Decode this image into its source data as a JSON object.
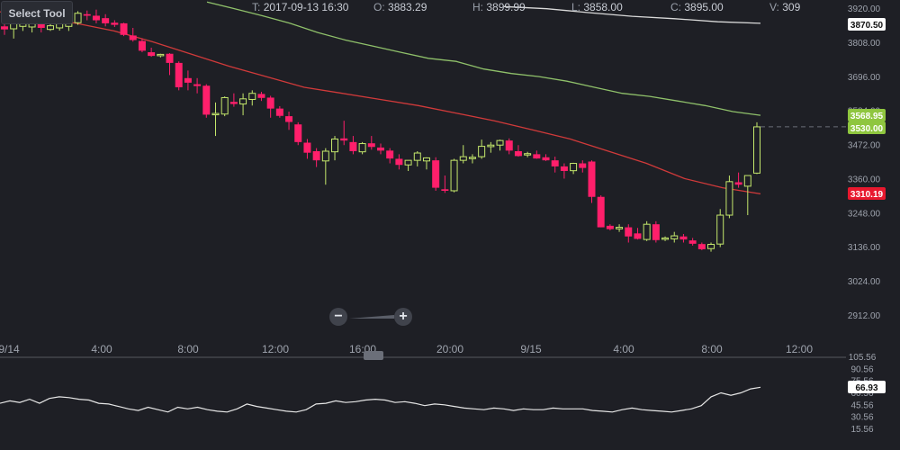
{
  "toolbar": {
    "select_tool_label": "Select Tool"
  },
  "info": {
    "t_label": "T:",
    "t_value": "2017-09-13 16:30",
    "o_label": "O:",
    "o_value": "3883.29",
    "h_label": "H:",
    "h_value": "3899.99",
    "l_label": "L:",
    "l_value": "3858.00",
    "c_label": "C:",
    "c_value": "3895.00",
    "v_label": "V:",
    "v_value": "309"
  },
  "zoom": {
    "minus_label": "−",
    "plus_label": "+"
  },
  "colors": {
    "background": "#1e1f25",
    "up_candle": "#c5e86c",
    "down_candle": "#ff1f6b",
    "ma_fast": "#8fc06a",
    "ma_slow": "#d03a3a",
    "ma_top": "#d9d9d9",
    "oscillator": "#e6e6e6"
  },
  "chart_data": {
    "type": "candlestick",
    "price_axis_ticks": [
      "3920.00",
      "3808.00",
      "3696.00",
      "3584.00",
      "3472.00",
      "3360.00",
      "3248.00",
      "3136.00",
      "3024.00",
      "2912.00"
    ],
    "price_axis_range": [
      2912,
      3920
    ],
    "price_badges": [
      {
        "label": "3870.50",
        "style": "white"
      },
      {
        "label": "3568.95",
        "style": "green"
      },
      {
        "label": "3530.00",
        "style": "green"
      },
      {
        "label": "3310.19",
        "style": "red"
      }
    ],
    "time_axis_ticks": [
      "9/14",
      "4:00",
      "8:00",
      "12:00",
      "16:00",
      "20:00",
      "9/15",
      "4:00",
      "8:00",
      "12:00"
    ],
    "oscillator_axis_ticks": [
      "105.56",
      "90.56",
      "75.56",
      "60.56",
      "45.56",
      "30.56",
      "15.56"
    ],
    "oscillator_badge": "66.93",
    "candles": [
      {
        "o": 3860,
        "h": 3880,
        "l": 3832,
        "c": 3850
      },
      {
        "o": 3852,
        "h": 3875,
        "l": 3820,
        "c": 3872
      },
      {
        "o": 3860,
        "h": 3888,
        "l": 3845,
        "c": 3872
      },
      {
        "o": 3858,
        "h": 3880,
        "l": 3840,
        "c": 3874
      },
      {
        "o": 3880,
        "h": 3885,
        "l": 3840,
        "c": 3855
      },
      {
        "o": 3850,
        "h": 3890,
        "l": 3845,
        "c": 3862
      },
      {
        "o": 3855,
        "h": 3890,
        "l": 3846,
        "c": 3875
      },
      {
        "o": 3860,
        "h": 3896,
        "l": 3845,
        "c": 3872
      },
      {
        "o": 3872,
        "h": 3910,
        "l": 3865,
        "c": 3903
      },
      {
        "o": 3900,
        "h": 3912,
        "l": 3880,
        "c": 3895
      },
      {
        "o": 3895,
        "h": 3915,
        "l": 3870,
        "c": 3880
      },
      {
        "o": 3887,
        "h": 3900,
        "l": 3860,
        "c": 3870
      },
      {
        "o": 3872,
        "h": 3880,
        "l": 3858,
        "c": 3865
      },
      {
        "o": 3870,
        "h": 3872,
        "l": 3828,
        "c": 3832
      },
      {
        "o": 3830,
        "h": 3855,
        "l": 3810,
        "c": 3815
      },
      {
        "o": 3812,
        "h": 3820,
        "l": 3775,
        "c": 3780
      },
      {
        "o": 3775,
        "h": 3790,
        "l": 3760,
        "c": 3763
      },
      {
        "o": 3765,
        "h": 3770,
        "l": 3758,
        "c": 3768
      },
      {
        "o": 3770,
        "h": 3772,
        "l": 3700,
        "c": 3740
      },
      {
        "o": 3740,
        "h": 3745,
        "l": 3650,
        "c": 3660
      },
      {
        "o": 3690,
        "h": 3715,
        "l": 3650,
        "c": 3675
      },
      {
        "o": 3670,
        "h": 3690,
        "l": 3640,
        "c": 3664
      },
      {
        "o": 3665,
        "h": 3670,
        "l": 3560,
        "c": 3570
      },
      {
        "o": 3572,
        "h": 3610,
        "l": 3500,
        "c": 3574
      },
      {
        "o": 3572,
        "h": 3630,
        "l": 3565,
        "c": 3626
      },
      {
        "o": 3612,
        "h": 3640,
        "l": 3596,
        "c": 3605
      },
      {
        "o": 3605,
        "h": 3640,
        "l": 3568,
        "c": 3622
      },
      {
        "o": 3620,
        "h": 3650,
        "l": 3600,
        "c": 3640
      },
      {
        "o": 3638,
        "h": 3645,
        "l": 3615,
        "c": 3625
      },
      {
        "o": 3626,
        "h": 3632,
        "l": 3560,
        "c": 3590
      },
      {
        "o": 3590,
        "h": 3598,
        "l": 3560,
        "c": 3566
      },
      {
        "o": 3565,
        "h": 3580,
        "l": 3520,
        "c": 3546
      },
      {
        "o": 3538,
        "h": 3545,
        "l": 3470,
        "c": 3480
      },
      {
        "o": 3478,
        "h": 3490,
        "l": 3425,
        "c": 3445
      },
      {
        "o": 3450,
        "h": 3460,
        "l": 3398,
        "c": 3420
      },
      {
        "o": 3418,
        "h": 3460,
        "l": 3340,
        "c": 3450
      },
      {
        "o": 3448,
        "h": 3500,
        "l": 3420,
        "c": 3490
      },
      {
        "o": 3492,
        "h": 3550,
        "l": 3470,
        "c": 3485
      },
      {
        "o": 3480,
        "h": 3500,
        "l": 3440,
        "c": 3450
      },
      {
        "o": 3448,
        "h": 3480,
        "l": 3440,
        "c": 3475
      },
      {
        "o": 3476,
        "h": 3500,
        "l": 3455,
        "c": 3464
      },
      {
        "o": 3462,
        "h": 3475,
        "l": 3440,
        "c": 3452
      },
      {
        "o": 3452,
        "h": 3460,
        "l": 3410,
        "c": 3426
      },
      {
        "o": 3425,
        "h": 3440,
        "l": 3390,
        "c": 3405
      },
      {
        "o": 3405,
        "h": 3420,
        "l": 3385,
        "c": 3420
      },
      {
        "o": 3420,
        "h": 3450,
        "l": 3400,
        "c": 3444
      },
      {
        "o": 3418,
        "h": 3430,
        "l": 3390,
        "c": 3428
      },
      {
        "o": 3420,
        "h": 3430,
        "l": 3320,
        "c": 3330
      },
      {
        "o": 3325,
        "h": 3370,
        "l": 3313,
        "c": 3320
      },
      {
        "o": 3320,
        "h": 3425,
        "l": 3315,
        "c": 3420
      },
      {
        "o": 3420,
        "h": 3470,
        "l": 3410,
        "c": 3432
      },
      {
        "o": 3430,
        "h": 3440,
        "l": 3410,
        "c": 3430
      },
      {
        "o": 3432,
        "h": 3488,
        "l": 3425,
        "c": 3466
      },
      {
        "o": 3465,
        "h": 3480,
        "l": 3445,
        "c": 3470
      },
      {
        "o": 3470,
        "h": 3488,
        "l": 3452,
        "c": 3485
      },
      {
        "o": 3485,
        "h": 3492,
        "l": 3440,
        "c": 3452
      },
      {
        "o": 3450,
        "h": 3470,
        "l": 3432,
        "c": 3434
      },
      {
        "o": 3438,
        "h": 3448,
        "l": 3430,
        "c": 3442
      },
      {
        "o": 3440,
        "h": 3452,
        "l": 3425,
        "c": 3426
      },
      {
        "o": 3430,
        "h": 3440,
        "l": 3418,
        "c": 3420
      },
      {
        "o": 3420,
        "h": 3432,
        "l": 3380,
        "c": 3400
      },
      {
        "o": 3400,
        "h": 3410,
        "l": 3360,
        "c": 3385
      },
      {
        "o": 3386,
        "h": 3412,
        "l": 3375,
        "c": 3410
      },
      {
        "o": 3410,
        "h": 3420,
        "l": 3380,
        "c": 3395
      },
      {
        "o": 3416,
        "h": 3420,
        "l": 3280,
        "c": 3300
      },
      {
        "o": 3300,
        "h": 3305,
        "l": 3200,
        "c": 3200
      },
      {
        "o": 3205,
        "h": 3210,
        "l": 3190,
        "c": 3194
      },
      {
        "o": 3195,
        "h": 3210,
        "l": 3185,
        "c": 3200
      },
      {
        "o": 3200,
        "h": 3210,
        "l": 3150,
        "c": 3170
      },
      {
        "o": 3180,
        "h": 3198,
        "l": 3160,
        "c": 3162
      },
      {
        "o": 3160,
        "h": 3220,
        "l": 3155,
        "c": 3210
      },
      {
        "o": 3210,
        "h": 3220,
        "l": 3150,
        "c": 3158
      },
      {
        "o": 3162,
        "h": 3170,
        "l": 3155,
        "c": 3165
      },
      {
        "o": 3162,
        "h": 3185,
        "l": 3150,
        "c": 3172
      },
      {
        "o": 3170,
        "h": 3178,
        "l": 3150,
        "c": 3160
      },
      {
        "o": 3157,
        "h": 3165,
        "l": 3140,
        "c": 3146
      },
      {
        "o": 3145,
        "h": 3150,
        "l": 3125,
        "c": 3128
      },
      {
        "o": 3130,
        "h": 3150,
        "l": 3120,
        "c": 3144
      },
      {
        "o": 3145,
        "h": 3260,
        "l": 3135,
        "c": 3240
      },
      {
        "o": 3240,
        "h": 3370,
        "l": 3230,
        "c": 3350
      },
      {
        "o": 3348,
        "h": 3380,
        "l": 3330,
        "c": 3340
      },
      {
        "o": 3335,
        "h": 3370,
        "l": 3240,
        "c": 3370
      },
      {
        "o": 3378,
        "h": 3545,
        "l": 3375,
        "c": 3530
      }
    ],
    "ma_slow_points": [
      3908,
      3890,
      3870,
      3845,
      3810,
      3770,
      3730,
      3695,
      3660,
      3640,
      3620,
      3600,
      3575,
      3550,
      3520,
      3490,
      3450,
      3410,
      3360,
      3330,
      3310
    ],
    "ma_fast_points": [
      3940,
      3918,
      3895,
      3870,
      3840,
      3815,
      3795,
      3775,
      3755,
      3745,
      3720,
      3705,
      3695,
      3680,
      3660,
      3640,
      3630,
      3615,
      3600,
      3580,
      3568
    ],
    "ma_top_points": [
      3925,
      3918,
      3905,
      3893,
      3885,
      3875,
      3870
    ],
    "oscillator_values": [
      47,
      50,
      48,
      52,
      47,
      53,
      55,
      54,
      52,
      51,
      47,
      46,
      43,
      40,
      38,
      42,
      39,
      36,
      42,
      40,
      42,
      39,
      37,
      36,
      40,
      46,
      43,
      41,
      39,
      37,
      36,
      39,
      46,
      47,
      50,
      48,
      49,
      51,
      52,
      51,
      48,
      49,
      47,
      44,
      46,
      45,
      43,
      41,
      40,
      39,
      41,
      40,
      38,
      40,
      39,
      39,
      41,
      40,
      40,
      40,
      38,
      37,
      36,
      39,
      41,
      39,
      38,
      37,
      36,
      38,
      40,
      44,
      55,
      60,
      57,
      60,
      65,
      66.93
    ]
  }
}
